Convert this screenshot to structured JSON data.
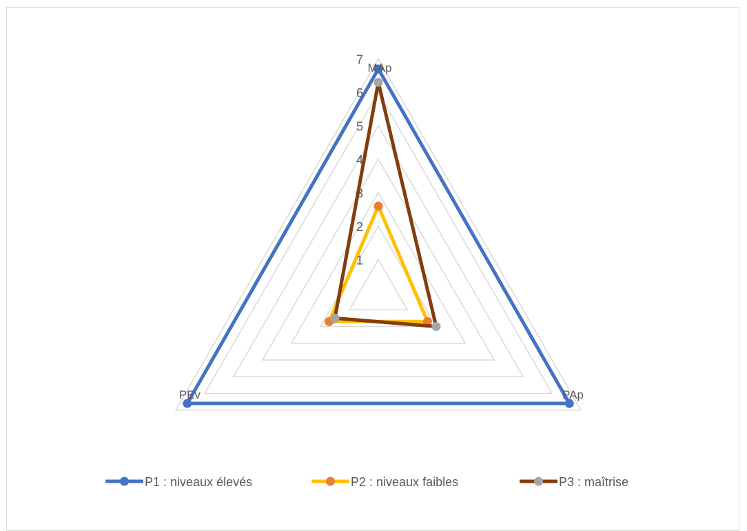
{
  "chart_data": {
    "type": "radar",
    "axes": [
      "MAp",
      "PAp",
      "PEv"
    ],
    "rmax": 7,
    "ticks": [
      "1",
      "2",
      "3",
      "4",
      "5",
      "6",
      "7"
    ],
    "grid": true,
    "legend_position": "bottom",
    "series": [
      {
        "name": "P1 : niveaux élevés",
        "values": [
          6.7,
          6.6,
          6.6
        ],
        "line_color": "#4472C4",
        "marker_color": "#4472C4"
      },
      {
        "name": "P2 : niveaux faibles",
        "values": [
          2.6,
          1.7,
          1.7
        ],
        "line_color": "#FFC000",
        "marker_color": "#ED7D31"
      },
      {
        "name": "P3 : maîtrise",
        "values": [
          6.3,
          2.0,
          1.5
        ],
        "line_color": "#843C0C",
        "marker_color": "#A5A5A5"
      }
    ]
  }
}
